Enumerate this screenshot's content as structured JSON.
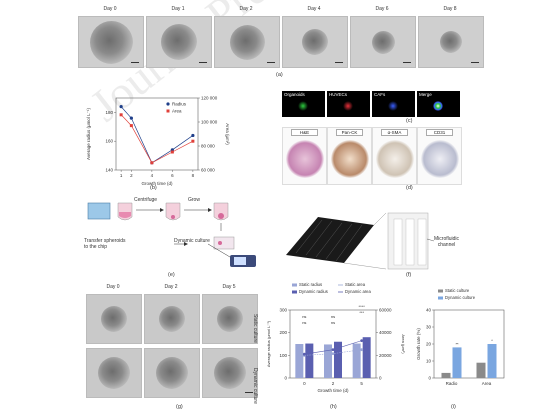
{
  "panel_a": {
    "days": [
      "Day 0",
      "Day 1",
      "Day 2",
      "Day 4",
      "Day 6",
      "Day 8"
    ],
    "label": "(a)"
  },
  "panel_b": {
    "label": "(b)"
  },
  "panel_c": {
    "titles": [
      "Organoids",
      "HUVECs",
      "CAFs",
      "Merge"
    ],
    "label": "(c)"
  },
  "panel_d": {
    "titles": [
      "H&E",
      "Pan-CK",
      "α-SMA",
      "CD31"
    ],
    "label": "(d)"
  },
  "panel_e": {
    "centrifuge": "Centrifuge",
    "grow": "Grow",
    "transfer": "Transfer spheroids\nto the chip",
    "dynamic": "Dynamic culture",
    "label": "(e)"
  },
  "panel_f": {
    "microfluidic": "Microfluidic\nchannel",
    "label": "(f)"
  },
  "panel_g": {
    "days": [
      "Day 0",
      "Day 2",
      "Day 5"
    ],
    "rows": [
      "Static culture",
      "Dynamic culture"
    ],
    "label": "(g)"
  },
  "panel_h": {
    "label": "(h)"
  },
  "panel_i": {
    "label": "(i)"
  },
  "watermark": "Journal Pre-proof",
  "colors": {
    "radius": "#1f3f8a",
    "area": "#e0403a",
    "static": "#9aa6d6",
    "dynamic": "#5a5fb0",
    "static_i": "#8a8a8a",
    "dynamic_i": "#7aa6e0"
  },
  "chart_data": [
    {
      "id": "b",
      "type": "line",
      "x": [
        1,
        2,
        4,
        6,
        8
      ],
      "xticks": [
        1,
        2,
        4,
        6,
        8
      ],
      "xlabel": "Growth time (d)",
      "ylabel": "Average radius (μmol L⁻¹)",
      "y2label": "Area (μm²)",
      "ylim": [
        140,
        190
      ],
      "yticks": [
        140,
        160,
        180
      ],
      "y2lim": [
        60000,
        120000
      ],
      "y2ticks": [
        60000,
        80000,
        100000,
        120000
      ],
      "y2ticklabels": [
        "60 000",
        "80 000",
        "100 000",
        "120 000"
      ],
      "series": [
        {
          "name": "Radius",
          "values": [
            184,
            176,
            145,
            154,
            164
          ],
          "axis": "left"
        },
        {
          "name": "Area",
          "values": [
            106000,
            97000,
            66000,
            75000,
            84000
          ],
          "axis": "right"
        }
      ],
      "legend": "top-right"
    },
    {
      "id": "h",
      "type": "bar",
      "categories": [
        "0",
        "2",
        "5"
      ],
      "xlabel": "Growth time (d)",
      "ylabel": "Average radius (μmol L⁻¹)",
      "y2label": "Area (μm²)",
      "ylim": [
        0,
        300
      ],
      "yticks": [
        0,
        100,
        200,
        300
      ],
      "y2lim": [
        0,
        60000
      ],
      "y2ticks": [
        0,
        20000,
        40000,
        60000
      ],
      "series": [
        {
          "name": "Static radius",
          "values": [
            150,
            148,
            152
          ],
          "kind": "bar"
        },
        {
          "name": "Dynamic radius",
          "values": [
            152,
            160,
            180
          ],
          "kind": "bar"
        },
        {
          "name": "Static area",
          "values": [
            20000,
            21500,
            25000
          ],
          "kind": "line"
        },
        {
          "name": "Dynamic area",
          "values": [
            21000,
            25000,
            33000
          ],
          "kind": "line"
        }
      ],
      "annotations": [
        "ns",
        "ns",
        "ns",
        "ns",
        "***",
        "****"
      ],
      "legend": "top"
    },
    {
      "id": "i",
      "type": "bar",
      "categories": [
        "Radio",
        "Area"
      ],
      "ylabel": "Growth rate (%)",
      "ylim": [
        0,
        40
      ],
      "yticks": [
        0,
        10,
        20,
        30,
        40
      ],
      "series": [
        {
          "name": "Static culture",
          "values": [
            3,
            9
          ]
        },
        {
          "name": "Dynamic culture",
          "values": [
            18,
            20
          ]
        }
      ],
      "annotations": [
        "**",
        "*"
      ],
      "legend": "top"
    }
  ]
}
